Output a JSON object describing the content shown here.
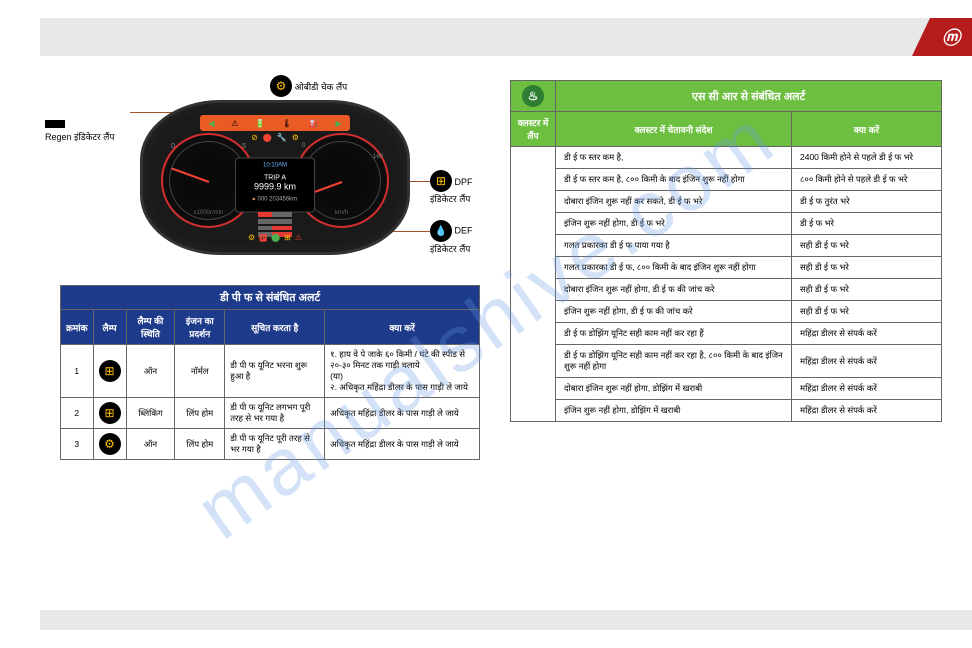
{
  "logo": "ⓜ",
  "watermark": "manualshive.com",
  "labels": {
    "regen": "Regen इंडिकेटर लैंप",
    "obd": "ओबीडी चेक लैंप",
    "dpf": "DPF इंडिकेटर लैंप",
    "def": "DEF इंडिकेटर लैंप"
  },
  "cluster": {
    "trip_label": "TRIP A",
    "trip_value": "9999.9 km",
    "odo": "000 203456km",
    "time": "10:10AM",
    "rpm_max": "5",
    "speed_max": "160"
  },
  "dpf_table": {
    "title": "डी पी फ से संबंधित अलर्ट",
    "headers": [
      "क्रमांक",
      "लैम्प",
      "लैम्प की स्थिति",
      "इंजन का प्रदर्शन",
      "सूचित करता है",
      "क्या करें"
    ],
    "rows": [
      {
        "n": "1",
        "status": "ऑन",
        "engine": "नॉर्मल",
        "indicates": "डी पी फ यूनिट भरना शुरू हुआ है",
        "action": "१. हाय वे पे जाके ६० किमी / घंटे की स्पीड से २०-३० मिनट तक गाड़ी चलाये\n(या)\n२. अधिकृत महिंद्रा डीलर के पास गाड़ी ले जाये"
      },
      {
        "n": "2",
        "status": "ब्लिंकिंग",
        "engine": "लिंप होम",
        "indicates": "डी पी फ यूनिट लगभग पूरी तरह से भर गया है",
        "action": "अधिकृत महिंद्रा डीलर के पास गाड़ी ले जाये"
      },
      {
        "n": "3",
        "status": "ऑन",
        "engine": "लिंप होम",
        "indicates": "डी पी फ यूनिट पूरी तरह से भर गया है",
        "action": "अधिकृत महिंद्रा डीलर के पास गाड़ी ले जाये"
      }
    ]
  },
  "scr_table": {
    "title": "एस सी आर से संबंधित अलर्ट",
    "headers": [
      "क्लस्टर में लैंप",
      "क्लस्टर में चेतावनी संदेश",
      "क्या करें"
    ],
    "rows": [
      [
        "डी ई फ स्तर कम है,",
        "2400 किमी होने से पहले डी ई फ भरे"
      ],
      [
        "डी ई फ स्तर कम है, ८०० किमी के बाद इंजिन शुरू नहीं होगा",
        "८०० किमी होने से पहले डी ई फ भरे"
      ],
      [
        "दोबारा इंजिन शुरू नहीं कर सकते, डी ई फ भरे",
        "डी ई फ तुरंत भरे"
      ],
      [
        "इंजिन शुरू नहीं होगा, डी ई फ भरे",
        "डी ई फ भरे"
      ],
      [
        "गलत प्रकारका डी ई फ पाया गया है",
        "सही डी ई फ भरे"
      ],
      [
        "गलत प्रकारका डी ई फ, ८०० किमी के बाद इंजिन शुरू नहीं होगा",
        "सही डी ई फ भरे"
      ],
      [
        "दोबारा इंजिन शुरू नहीं होगा, डी ई फ की जांच करे",
        "सही डी ई फ भरे"
      ],
      [
        "इंजिन शुरू नहीं होगा, डी ई फ की जांच करे",
        "सही डी ई फ भरे"
      ],
      [
        "डी ई फ डोझिंग यूनिट सही काम नहीं कर रहा हैं",
        "महिंद्रा डीलर से संपर्क करें"
      ],
      [
        "डी ई फ डोझिंग यूनिट सही काम नहीं कर रहा है, ८०० किमी के बाद इंजिन शुरू नहीं होगा",
        "महिंद्रा डीलर से संपर्क करें"
      ],
      [
        "दोबारा इंजिन शुरू नहीं होगा, डोझिंग में खराबी",
        "महिंद्रा डीलर से संपर्क करें"
      ],
      [
        "इंजिन शुरू नहीं होगा, डोझिंग में खराबी",
        "महिंद्रा डीलर से संपर्क करें"
      ]
    ]
  }
}
